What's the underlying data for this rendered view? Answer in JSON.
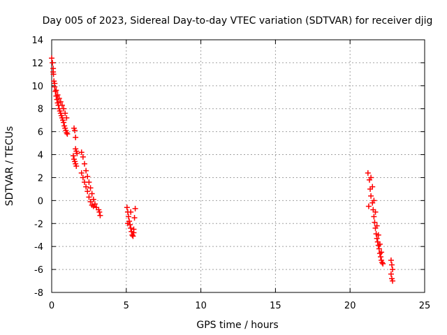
{
  "chart_data": {
    "type": "scatter",
    "title": "Day 005 of 2023, Sidereal Day-to-day VTEC variation (SDTVAR) for receiver djig",
    "xlabel": "GPS time / hours",
    "ylabel": "SDTVAR / TECUs",
    "xlim": [
      0,
      25
    ],
    "ylim": [
      -8,
      14
    ],
    "xticks": [
      0,
      5,
      10,
      15,
      20,
      25
    ],
    "yticks": [
      -8,
      -6,
      -4,
      -2,
      0,
      2,
      4,
      6,
      8,
      10,
      12,
      14
    ],
    "grid": true,
    "marker": "+",
    "color": "#ff0000",
    "series": [
      {
        "name": "SDTVAR",
        "x": [
          0.0,
          0.05,
          0.1,
          0.12,
          0.15,
          0.2,
          0.25,
          0.3,
          0.35,
          0.4,
          0.45,
          0.5,
          0.55,
          0.6,
          0.65,
          0.7,
          0.75,
          0.8,
          0.85,
          0.9,
          0.95,
          1.0,
          1.05,
          0.1,
          0.2,
          0.3,
          0.4,
          0.5,
          0.6,
          0.7,
          0.8,
          0.9,
          1.0,
          1.5,
          1.55,
          1.6,
          1.6,
          1.65,
          1.7,
          1.45,
          1.5,
          1.55,
          1.6,
          1.65,
          2.0,
          2.1,
          2.2,
          2.3,
          2.4,
          2.5,
          2.6,
          2.7,
          2.8,
          2.9,
          3.0,
          2.0,
          2.1,
          2.2,
          2.3,
          2.4,
          2.5,
          2.6,
          2.7,
          2.8,
          3.15,
          3.2,
          3.25,
          5.05,
          5.1,
          5.15,
          5.2,
          5.25,
          5.3,
          5.35,
          5.4,
          5.45,
          5.5,
          5.55,
          5.6,
          5.1,
          5.3,
          5.5,
          21.2,
          21.3,
          21.35,
          21.4,
          21.5,
          21.55,
          21.6,
          21.65,
          21.7,
          21.75,
          21.8,
          21.85,
          21.9,
          21.95,
          22.0,
          22.05,
          22.1,
          22.15,
          22.2,
          21.25,
          21.4,
          21.5,
          21.6,
          21.7,
          21.8,
          21.9,
          22.0,
          22.1,
          22.75,
          22.8,
          22.85,
          22.75,
          22.8,
          22.85
        ],
        "y": [
          12.4,
          12.0,
          11.5,
          11.0,
          10.4,
          9.9,
          9.5,
          9.1,
          8.8,
          8.5,
          8.3,
          8.0,
          7.8,
          7.6,
          7.4,
          7.2,
          7.0,
          6.8,
          6.5,
          6.3,
          6.1,
          5.9,
          5.8,
          11.2,
          10.2,
          9.6,
          9.2,
          8.9,
          8.6,
          8.3,
          8.0,
          7.6,
          7.2,
          6.3,
          6.1,
          5.5,
          4.5,
          4.3,
          4.1,
          3.9,
          3.6,
          3.4,
          3.2,
          3.0,
          4.2,
          3.8,
          3.2,
          2.6,
          2.1,
          1.6,
          1.1,
          0.6,
          0.1,
          -0.3,
          -0.6,
          2.4,
          2.0,
          1.6,
          1.2,
          0.8,
          0.3,
          -0.1,
          -0.4,
          -0.5,
          -0.8,
          -1.0,
          -1.3,
          -0.6,
          -1.0,
          -1.4,
          -1.8,
          -2.1,
          -2.4,
          -2.7,
          -3.0,
          -3.1,
          -2.8,
          -1.5,
          -0.7,
          -2.0,
          -1.0,
          -2.5,
          2.4,
          1.8,
          1.0,
          0.4,
          -0.2,
          -0.8,
          -1.4,
          -1.9,
          -2.4,
          -2.9,
          -3.3,
          -3.6,
          -3.9,
          -4.2,
          -4.6,
          -4.9,
          -5.2,
          -5.4,
          -5.5,
          -0.5,
          2.0,
          1.2,
          0.0,
          -1.0,
          -2.2,
          -3.0,
          -3.8,
          -4.5,
          -5.2,
          -5.6,
          -6.0,
          -6.4,
          -6.8,
          -7.0
        ]
      }
    ]
  }
}
